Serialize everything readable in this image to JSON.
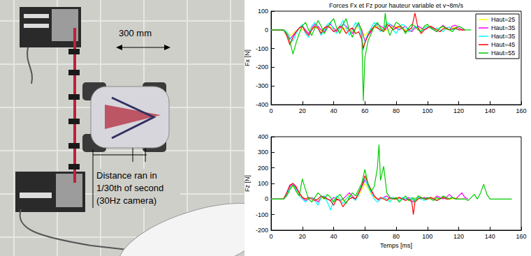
{
  "photo": {
    "scale_label": "300 mm",
    "note_lines": [
      "Distance ran in",
      "1/30th of second",
      "(30Hz camera)"
    ]
  },
  "chart_data": [
    {
      "type": "line",
      "title": "Forces Fx et Fz pour hauteur variable et v~8m/s",
      "ylabel": "Fx [N]",
      "xlim": [
        0,
        160
      ],
      "xticks": [
        0,
        20,
        40,
        60,
        80,
        100,
        120,
        140,
        160
      ],
      "ylim": [
        -400,
        100
      ],
      "yticks": [
        -400,
        -300,
        -200,
        -100,
        0,
        100
      ],
      "grid": false,
      "legend": "upper right",
      "x": [
        0,
        5,
        8,
        10,
        12,
        14,
        16,
        18,
        20,
        22,
        24,
        26,
        28,
        30,
        32,
        34,
        36,
        38,
        40,
        42,
        44,
        46,
        48,
        50,
        52,
        54,
        56,
        58,
        59,
        60,
        62,
        64,
        66,
        68,
        70,
        72,
        73,
        74,
        76,
        78,
        80,
        82,
        84,
        86,
        88,
        90,
        92,
        94,
        96,
        98,
        100,
        102,
        104,
        106,
        108,
        110,
        112,
        114,
        116,
        118,
        120,
        122,
        124,
        126,
        128,
        130
      ],
      "series": [
        {
          "name": "Haut=25",
          "color": "#ffff00",
          "values": [
            0,
            0,
            0,
            -10,
            -30,
            -20,
            -5,
            0,
            5,
            -10,
            0,
            10,
            15,
            5,
            -5,
            10,
            20,
            15,
            5,
            0,
            -10,
            5,
            10,
            0,
            -10,
            5,
            15,
            -10,
            -20,
            -30,
            -10,
            0,
            10,
            20,
            10,
            5,
            0,
            -5,
            10,
            15,
            20,
            10,
            5,
            0,
            -10,
            -5,
            10,
            5,
            0,
            15,
            20,
            10,
            5,
            0,
            10,
            15,
            5,
            0,
            10,
            15,
            0,
            null,
            null,
            null,
            null,
            null
          ]
        },
        {
          "name": "Haut=35",
          "color": "#ff00ff",
          "values": [
            0,
            0,
            0,
            -20,
            -50,
            -30,
            -10,
            10,
            20,
            0,
            -20,
            10,
            30,
            20,
            0,
            -10,
            20,
            30,
            10,
            -10,
            10,
            30,
            20,
            0,
            -20,
            10,
            30,
            0,
            -30,
            -60,
            -30,
            -10,
            20,
            30,
            20,
            10,
            0,
            10,
            30,
            20,
            10,
            0,
            10,
            20,
            0,
            -10,
            10,
            20,
            10,
            0,
            10,
            20,
            0,
            -10,
            10,
            25,
            10,
            0,
            20,
            25,
            10,
            0,
            0,
            null,
            null,
            null
          ]
        },
        {
          "name": "Haut=35",
          "color": "#00ffff",
          "values": [
            0,
            0,
            0,
            -10,
            -40,
            -60,
            -20,
            10,
            30,
            -20,
            -40,
            20,
            40,
            10,
            -30,
            0,
            30,
            40,
            0,
            -20,
            20,
            50,
            10,
            -30,
            0,
            40,
            20,
            -40,
            -110,
            -60,
            -20,
            10,
            40,
            20,
            -10,
            10,
            20,
            40,
            30,
            0,
            -20,
            10,
            30,
            20,
            -10,
            0,
            20,
            10,
            -10,
            10,
            20,
            10,
            0,
            10,
            0,
            -10,
            10,
            15,
            0,
            5,
            0,
            null,
            null,
            null,
            null,
            null
          ]
        },
        {
          "name": "Haut=45",
          "color": "#ff0000",
          "values": [
            0,
            0,
            0,
            -30,
            -80,
            -40,
            -10,
            10,
            20,
            -10,
            -30,
            0,
            20,
            10,
            -20,
            10,
            20,
            10,
            -10,
            0,
            20,
            10,
            -20,
            0,
            10,
            -20,
            -10,
            -50,
            -100,
            -70,
            -30,
            0,
            20,
            10,
            0,
            -10,
            10,
            30,
            20,
            0,
            10,
            20,
            10,
            -10,
            0,
            10,
            90,
            10,
            -20,
            0,
            10,
            20,
            10,
            0,
            -10,
            5,
            10,
            0,
            5,
            10,
            0,
            0,
            0,
            null,
            null,
            null
          ]
        },
        {
          "name": "Haut=55",
          "color": "#00cc00",
          "values": [
            0,
            0,
            0,
            -20,
            -60,
            -130,
            -70,
            -20,
            20,
            40,
            0,
            -30,
            10,
            50,
            20,
            -20,
            10,
            40,
            60,
            10,
            -20,
            30,
            60,
            0,
            -40,
            10,
            40,
            -10,
            -380,
            -150,
            -60,
            -20,
            20,
            40,
            10,
            -10,
            90,
            20,
            -30,
            10,
            40,
            30,
            10,
            -20,
            10,
            30,
            20,
            0,
            -10,
            20,
            30,
            10,
            0,
            -10,
            10,
            20,
            5,
            0,
            -10,
            10,
            20,
            10,
            0,
            0,
            0,
            null
          ]
        }
      ]
    },
    {
      "type": "line",
      "ylabel": "Fz [N]",
      "xlabel": "Temps [ms]",
      "xlim": [
        0,
        160
      ],
      "xticks": [
        0,
        20,
        40,
        60,
        80,
        100,
        120,
        140,
        160
      ],
      "ylim": [
        -200,
        400
      ],
      "yticks": [
        -200,
        -100,
        0,
        100,
        200,
        300,
        400
      ],
      "grid": false,
      "x": [
        0,
        5,
        8,
        10,
        12,
        14,
        16,
        18,
        20,
        22,
        24,
        26,
        28,
        30,
        32,
        34,
        36,
        38,
        40,
        42,
        44,
        46,
        48,
        50,
        52,
        54,
        56,
        58,
        60,
        62,
        64,
        66,
        68,
        69,
        70,
        72,
        74,
        76,
        78,
        80,
        82,
        84,
        86,
        88,
        90,
        91,
        92,
        94,
        96,
        98,
        100,
        102,
        104,
        106,
        108,
        110,
        112,
        114,
        116,
        118,
        120,
        122,
        124,
        126,
        128,
        130,
        132,
        134,
        136,
        138,
        140,
        145,
        154
      ],
      "series": [
        {
          "name": "Haut=25",
          "color": "#ffff00",
          "values": [
            0,
            0,
            0,
            30,
            70,
            80,
            60,
            30,
            10,
            0,
            0,
            10,
            0,
            -10,
            0,
            10,
            0,
            -10,
            0,
            10,
            0,
            -10,
            0,
            30,
            10,
            0,
            20,
            60,
            100,
            70,
            30,
            10,
            0,
            0,
            0,
            10,
            0,
            -10,
            0,
            10,
            0,
            10,
            0,
            0,
            -10,
            0,
            10,
            0,
            0,
            10,
            0,
            0,
            10,
            0,
            0,
            10,
            0,
            0,
            0,
            10,
            0,
            null,
            null,
            null,
            null,
            null,
            null,
            null,
            null,
            null,
            null,
            null,
            null
          ]
        },
        {
          "name": "Haut=35",
          "color": "#ff00ff",
          "values": [
            0,
            0,
            0,
            40,
            80,
            100,
            70,
            40,
            10,
            -10,
            0,
            10,
            0,
            -20,
            10,
            20,
            0,
            -10,
            10,
            0,
            -10,
            0,
            20,
            40,
            20,
            0,
            30,
            80,
            120,
            90,
            50,
            20,
            0,
            -10,
            0,
            10,
            20,
            0,
            10,
            0,
            10,
            0,
            0,
            10,
            -10,
            -20,
            0,
            10,
            0,
            10,
            0,
            10,
            0,
            20,
            10,
            0,
            10,
            30,
            10,
            0,
            20,
            40,
            10,
            0,
            null,
            null,
            null,
            null,
            null,
            null,
            null,
            null,
            null
          ]
        },
        {
          "name": "Haut=35",
          "color": "#00ffff",
          "values": [
            0,
            0,
            0,
            30,
            70,
            90,
            60,
            20,
            0,
            -20,
            0,
            10,
            -10,
            -40,
            10,
            20,
            -20,
            -70,
            -10,
            20,
            0,
            -30,
            0,
            20,
            10,
            -10,
            30,
            100,
            130,
            80,
            40,
            0,
            -20,
            -10,
            0,
            10,
            0,
            -20,
            10,
            0,
            -10,
            10,
            0,
            0,
            10,
            -10,
            0,
            10,
            0,
            -10,
            0,
            10,
            0,
            -10,
            0,
            10,
            0,
            0,
            10,
            0,
            0,
            null,
            null,
            null,
            null,
            null,
            null,
            null,
            null,
            null,
            null,
            null,
            null
          ]
        },
        {
          "name": "Haut=45",
          "color": "#ff0000",
          "values": [
            0,
            0,
            0,
            40,
            90,
            100,
            80,
            40,
            10,
            0,
            10,
            0,
            -10,
            0,
            20,
            10,
            0,
            -10,
            -40,
            0,
            -10,
            -50,
            -20,
            0,
            10,
            0,
            40,
            80,
            150,
            100,
            60,
            20,
            0,
            0,
            10,
            0,
            -10,
            10,
            0,
            0,
            10,
            0,
            -10,
            0,
            -20,
            -100,
            -20,
            0,
            10,
            0,
            0,
            10,
            0,
            -10,
            0,
            10,
            0,
            0,
            10,
            0,
            0,
            0,
            0,
            null,
            null,
            null,
            null,
            null,
            null,
            null,
            null,
            null,
            null
          ]
        },
        {
          "name": "Haut=55",
          "color": "#00cc00",
          "values": [
            0,
            0,
            0,
            20,
            60,
            90,
            50,
            20,
            130,
            60,
            0,
            -20,
            10,
            40,
            20,
            0,
            30,
            10,
            -20,
            10,
            30,
            0,
            -30,
            10,
            40,
            20,
            60,
            100,
            190,
            100,
            50,
            80,
            200,
            350,
            120,
            210,
            40,
            10,
            0,
            10,
            -20,
            0,
            20,
            -10,
            0,
            10,
            -20,
            20,
            10,
            0,
            10,
            0,
            -10,
            10,
            0,
            20,
            10,
            0,
            10,
            0,
            0,
            0,
            0,
            -10,
            10,
            30,
            0,
            40,
            95,
            30,
            0,
            0,
            0
          ]
        }
      ]
    }
  ]
}
